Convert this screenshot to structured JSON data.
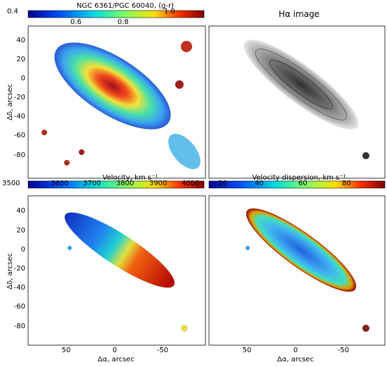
{
  "panel_tl": {
    "title": "NGC 6361/PGC 60040, (g-r)",
    "colorbar_ticks": [
      "0.4",
      "0.6",
      "0.8",
      "1.0"
    ],
    "y_label": "Δδ, arcsec",
    "y_ticks": [
      "40",
      "20",
      "0",
      "-20",
      "-40",
      "-60",
      "-80"
    ],
    "colors": {
      "low": "#1010c0",
      "mid": "#20d0a0",
      "high": "#a00000"
    }
  },
  "panel_tr": {
    "title": "Hα image",
    "colors": {
      "low": "#e0e0e0",
      "high": "#202020"
    }
  },
  "panel_bl": {
    "title": "Velocity, km s⁻¹",
    "colorbar_ticks": [
      "3500",
      "3600",
      "3700",
      "3800",
      "3900",
      "4000"
    ],
    "y_label": "Δδ, arcsec",
    "y_ticks": [
      "40",
      "20",
      "0",
      "-20",
      "-40",
      "-60",
      "-80"
    ],
    "x_label": "Δα, arcsec",
    "x_ticks": [
      "50",
      "0",
      "-50"
    ]
  },
  "panel_br": {
    "title": "Velocity dispersion, km s⁻¹",
    "colorbar_ticks": [
      "20",
      "40",
      "60",
      "80"
    ],
    "x_label": "Δα, arcsec",
    "x_ticks": [
      "50",
      "0",
      "-50"
    ]
  }
}
